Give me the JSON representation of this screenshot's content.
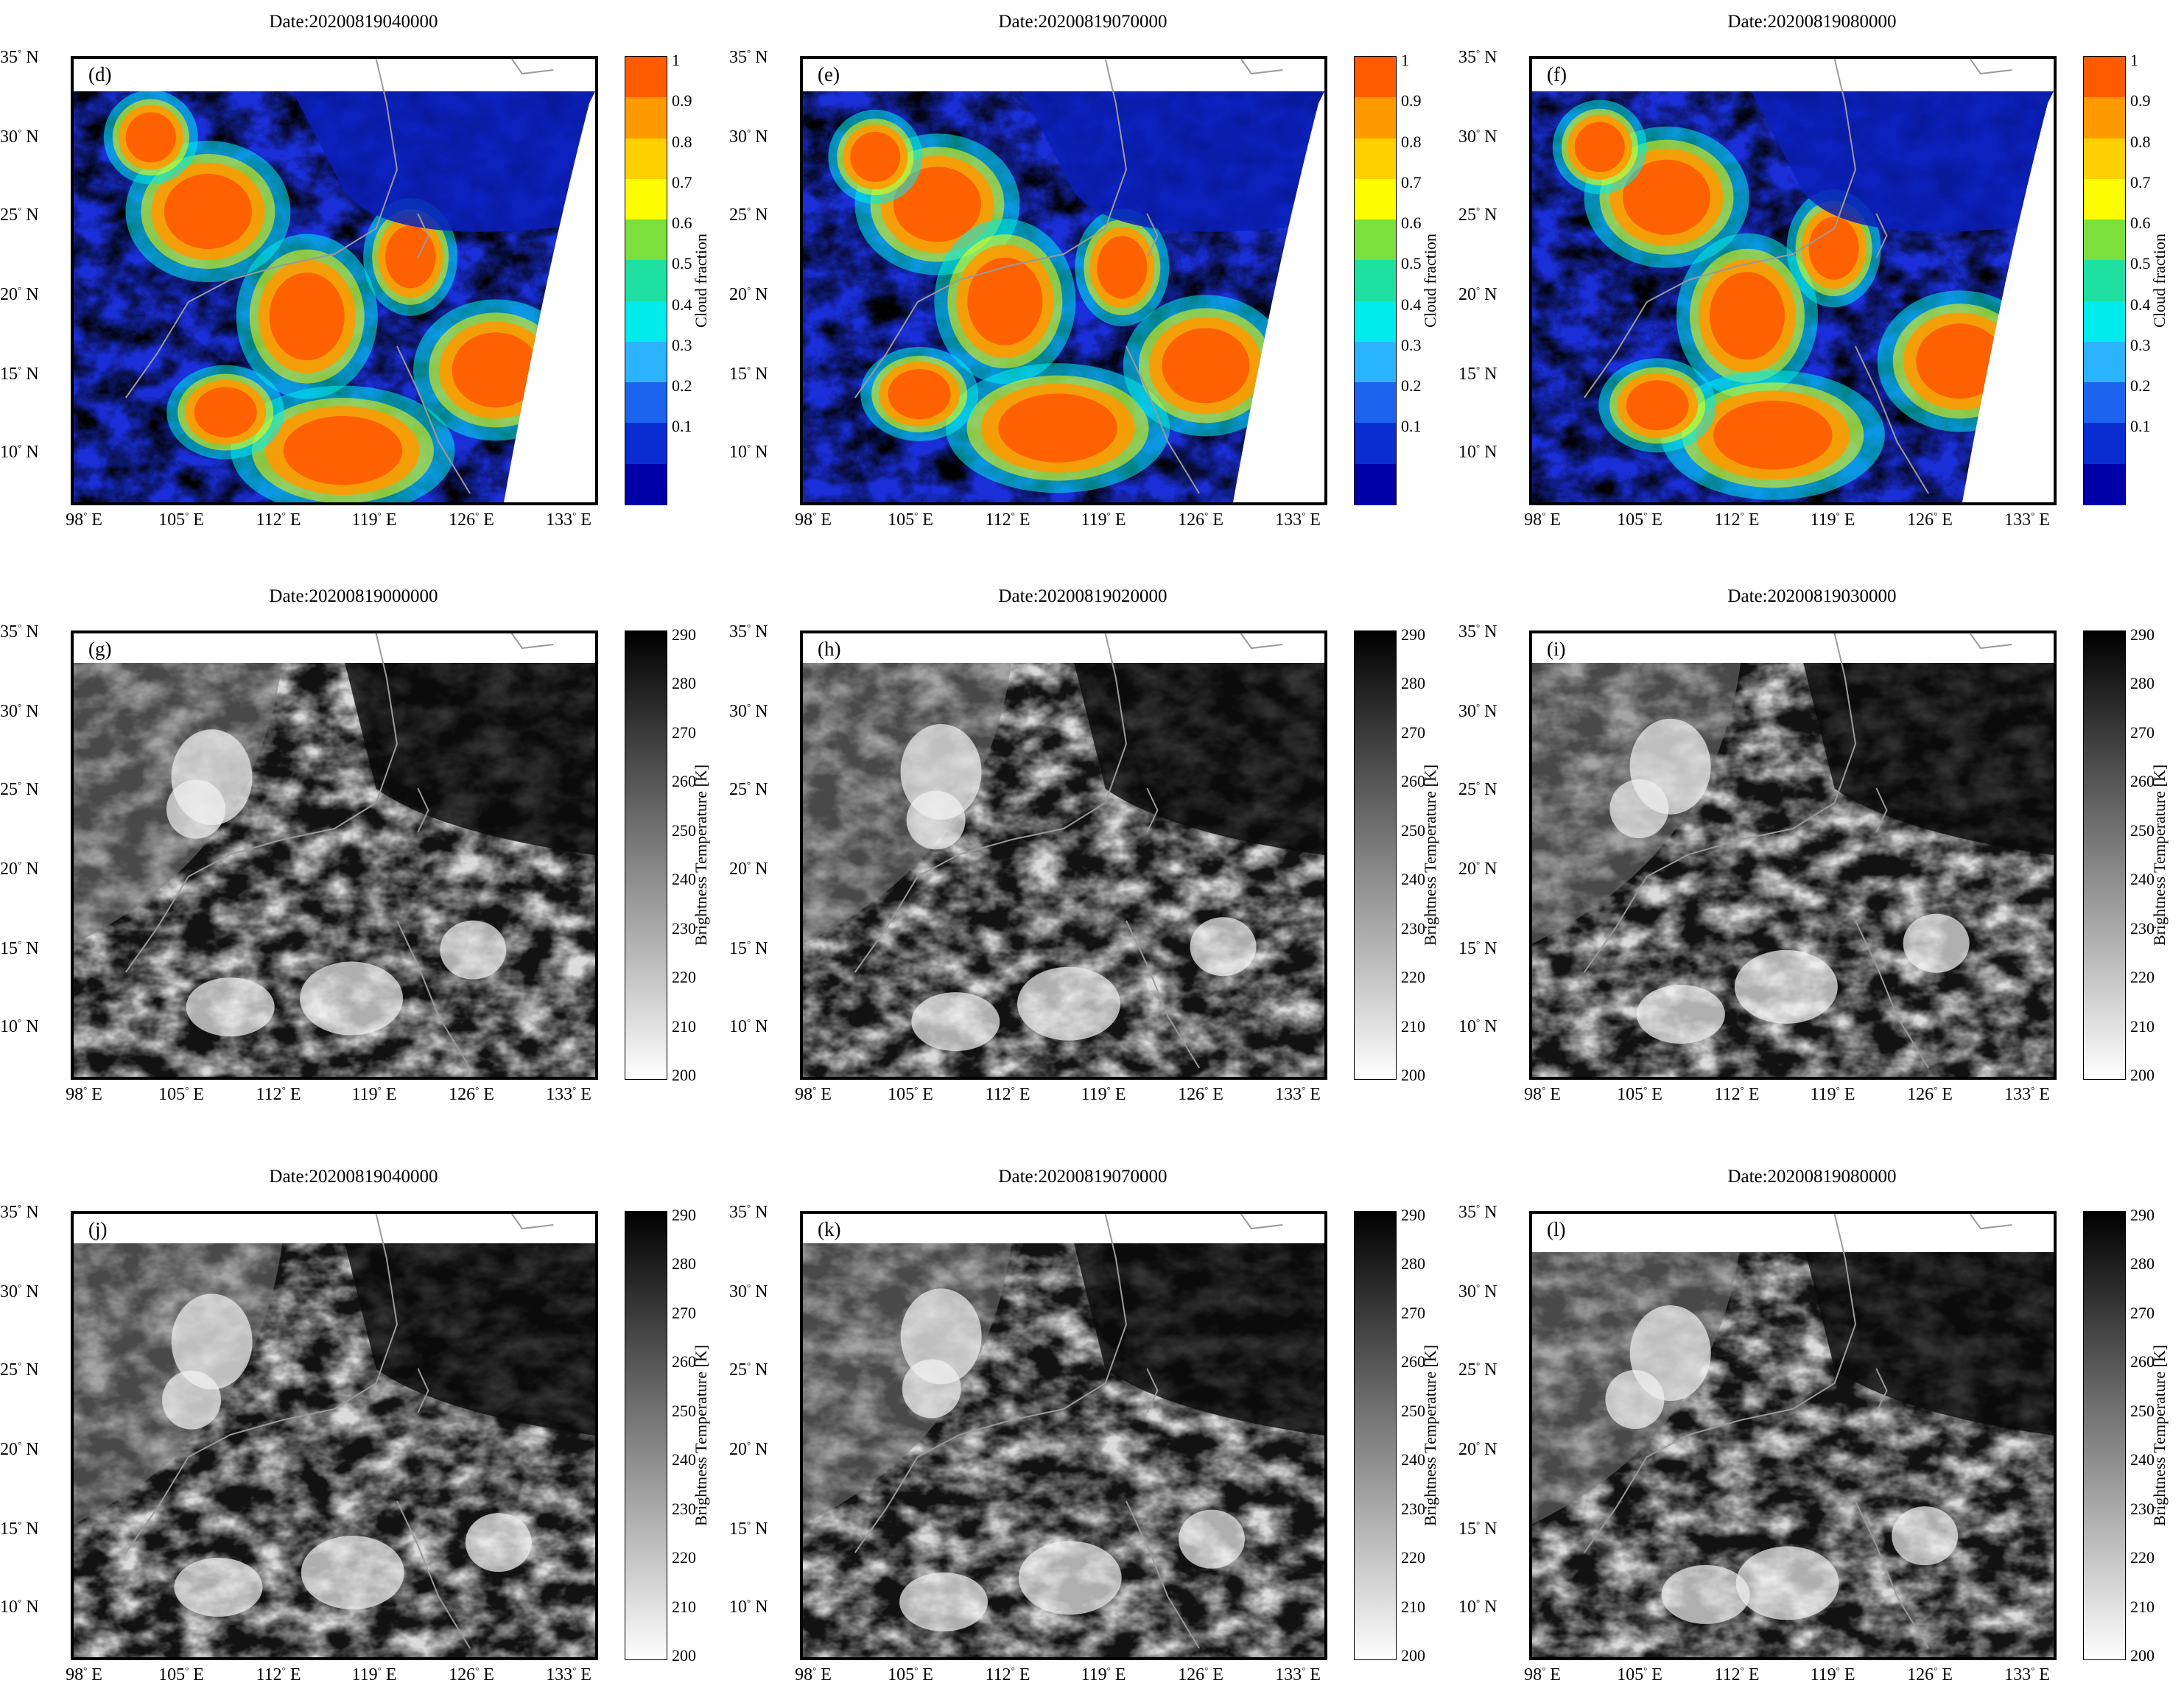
{
  "panels": [
    {
      "id": "d",
      "letter": "(d)",
      "title": "Date:20200819040000",
      "type": "cloud"
    },
    {
      "id": "e",
      "letter": "(e)",
      "title": "Date:20200819070000",
      "type": "cloud"
    },
    {
      "id": "f",
      "letter": "(f)",
      "title": "Date:20200819080000",
      "type": "cloud"
    },
    {
      "id": "g",
      "letter": "(g)",
      "title": "Date:20200819000000",
      "type": "bt"
    },
    {
      "id": "h",
      "letter": "(h)",
      "title": "Date:20200819020000",
      "type": "bt"
    },
    {
      "id": "i",
      "letter": "(i)",
      "title": "Date:20200819030000",
      "type": "bt"
    },
    {
      "id": "j",
      "letter": "(j)",
      "title": "Date:20200819040000",
      "type": "bt"
    },
    {
      "id": "k",
      "letter": "(k)",
      "title": "Date:20200819070000",
      "type": "bt"
    },
    {
      "id": "l",
      "letter": "(l)",
      "title": "Date:20200819080000",
      "type": "bt"
    }
  ],
  "axes": {
    "y_ticks": [
      "35",
      "30",
      "25",
      "20",
      "15",
      "10"
    ],
    "y_unit": "N",
    "x_ticks": [
      "98",
      "105",
      "112",
      "119",
      "126",
      "133"
    ],
    "x_unit": "E",
    "degree_symbol": "°"
  },
  "colorbars": {
    "cloud": {
      "title": "Cloud fraction",
      "labels": [
        "1",
        "0.9",
        "0.8",
        "0.7",
        "0.6",
        "0.5",
        "0.4",
        "0.3",
        "0.2",
        "0.1"
      ],
      "colors": [
        "#ff5a00",
        "#ff9900",
        "#ffd000",
        "#fdfd00",
        "#7be03c",
        "#1ee0a0",
        "#00ecec",
        "#2ab4ff",
        "#1c64f0",
        "#0a2dd2",
        "#0000a8"
      ]
    },
    "bt": {
      "title": "Brightness Temperature [K]",
      "labels": [
        "290",
        "280",
        "270",
        "260",
        "250",
        "240",
        "230",
        "220",
        "210",
        "200"
      ],
      "range": [
        200,
        290
      ]
    }
  }
}
